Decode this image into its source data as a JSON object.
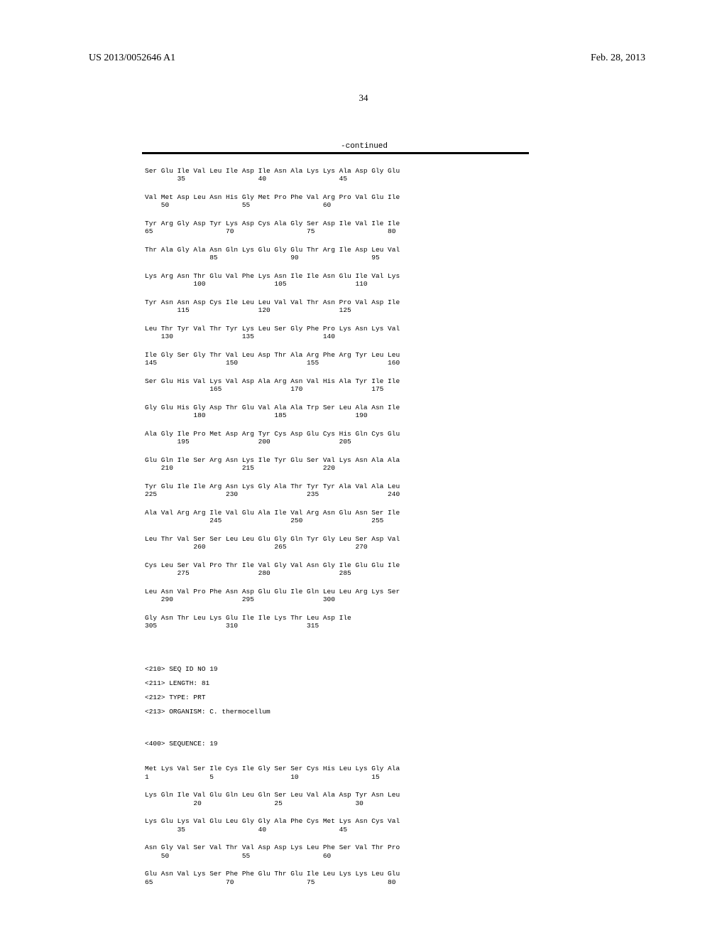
{
  "header": {
    "publication_number": "US 2013/0052646 A1",
    "publication_date": "Feb. 28, 2013",
    "page_number": "34"
  },
  "continued_label": "-continued",
  "sequence18": {
    "rows": [
      {
        "aa": "Ser Glu Ile Val Leu Ile Asp Ile Asn Ala Lys Lys Ala Asp Gly Glu",
        "pos": "        35                  40                  45"
      },
      {
        "aa": "Val Met Asp Leu Asn His Gly Met Pro Phe Val Arg Pro Val Glu Ile",
        "pos": "    50                  55                  60"
      },
      {
        "aa": "Tyr Arg Gly Asp Tyr Lys Asp Cys Ala Gly Ser Asp Ile Val Ile Ile",
        "pos": "65                  70                  75                  80"
      },
      {
        "aa": "Thr Ala Gly Ala Asn Gln Lys Glu Gly Glu Thr Arg Ile Asp Leu Val",
        "pos": "                85                  90                  95"
      },
      {
        "aa": "Lys Arg Asn Thr Glu Val Phe Lys Asn Ile Ile Asn Glu Ile Val Lys",
        "pos": "            100                 105                 110"
      },
      {
        "aa": "Tyr Asn Asn Asp Cys Ile Leu Leu Val Val Thr Asn Pro Val Asp Ile",
        "pos": "        115                 120                 125"
      },
      {
        "aa": "Leu Thr Tyr Val Thr Tyr Lys Leu Ser Gly Phe Pro Lys Asn Lys Val",
        "pos": "    130                 135                 140"
      },
      {
        "aa": "Ile Gly Ser Gly Thr Val Leu Asp Thr Ala Arg Phe Arg Tyr Leu Leu",
        "pos": "145                 150                 155                 160"
      },
      {
        "aa": "Ser Glu His Val Lys Val Asp Ala Arg Asn Val His Ala Tyr Ile Ile",
        "pos": "                165                 170                 175"
      },
      {
        "aa": "Gly Glu His Gly Asp Thr Glu Val Ala Ala Trp Ser Leu Ala Asn Ile",
        "pos": "            180                 185                 190"
      },
      {
        "aa": "Ala Gly Ile Pro Met Asp Arg Tyr Cys Asp Glu Cys His Gln Cys Glu",
        "pos": "        195                 200                 205"
      },
      {
        "aa": "Glu Gln Ile Ser Arg Asn Lys Ile Tyr Glu Ser Val Lys Asn Ala Ala",
        "pos": "    210                 215                 220"
      },
      {
        "aa": "Tyr Glu Ile Ile Arg Asn Lys Gly Ala Thr Tyr Tyr Ala Val Ala Leu",
        "pos": "225                 230                 235                 240"
      },
      {
        "aa": "Ala Val Arg Arg Ile Val Glu Ala Ile Val Arg Asn Glu Asn Ser Ile",
        "pos": "                245                 250                 255"
      },
      {
        "aa": "Leu Thr Val Ser Ser Leu Leu Glu Gly Gln Tyr Gly Leu Ser Asp Val",
        "pos": "            260                 265                 270"
      },
      {
        "aa": "Cys Leu Ser Val Pro Thr Ile Val Gly Val Asn Gly Ile Glu Glu Ile",
        "pos": "        275                 280                 285"
      },
      {
        "aa": "Leu Asn Val Pro Phe Asn Asp Glu Glu Ile Gln Leu Leu Arg Lys Ser",
        "pos": "    290                 295                 300"
      },
      {
        "aa": "Gly Asn Thr Leu Lys Glu Ile Ile Lys Thr Leu Asp Ile",
        "pos": "305                 310                 315"
      }
    ]
  },
  "sequence19_meta": {
    "seq_id": "<210> SEQ ID NO 19",
    "length": "<211> LENGTH: 81",
    "type": "<212> TYPE: PRT",
    "organism": "<213> ORGANISM: C. thermocellum",
    "sequence_header": "<400> SEQUENCE: 19"
  },
  "sequence19": {
    "rows": [
      {
        "aa": "Met Lys Val Ser Ile Cys Ile Gly Ser Ser Cys His Leu Lys Gly Ala",
        "pos": "1               5                   10                  15"
      },
      {
        "aa": "Lys Gln Ile Val Glu Gln Leu Gln Ser Leu Val Ala Asp Tyr Asn Leu",
        "pos": "            20                  25                  30"
      },
      {
        "aa": "Lys Glu Lys Val Glu Leu Gly Gly Ala Phe Cys Met Lys Asn Cys Val",
        "pos": "        35                  40                  45"
      },
      {
        "aa": "Asn Gly Val Ser Val Thr Val Asp Asp Lys Leu Phe Ser Val Thr Pro",
        "pos": "    50                  55                  60"
      },
      {
        "aa": "Glu Asn Val Lys Ser Phe Phe Glu Thr Glu Ile Leu Lys Lys Leu Glu",
        "pos": "65                  70                  75                  80"
      }
    ]
  },
  "styling": {
    "background_color": "#ffffff",
    "text_color": "#000000",
    "header_font": "Times New Roman",
    "body_font": "Courier New",
    "header_fontsize": 14,
    "page_number_fontsize": 13,
    "sequence_fontsize": 9.5,
    "divider_color": "#000000"
  }
}
